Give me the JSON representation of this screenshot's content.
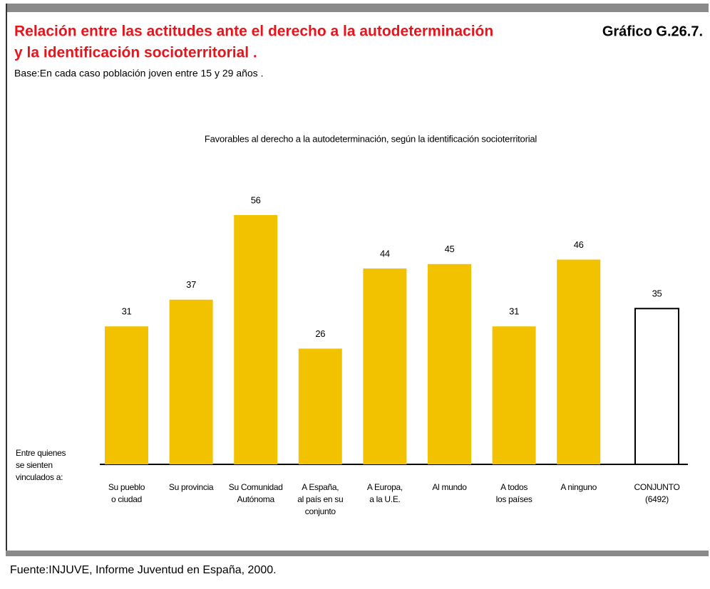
{
  "header": {
    "title_lines": [
      "Relación entre las actitudes ante el derecho a la autodeterminación",
      "y la identificación socioterritorial ."
    ],
    "code": "Gráfico G.26.7.",
    "base": "Base:En cada caso población joven entre 15 y 29 años ."
  },
  "chart_data": {
    "type": "bar",
    "title": "Favorables al derecho a la autodeterminación, según la identificación socioterritorial",
    "axis_label": "Entre quienes\nse sienten\nvinculados a:",
    "categories": [
      "Su pueblo\no ciudad",
      "Su provincia",
      "Su Comunidad\nAutónoma",
      "A España,\nal país en su\nconjunto",
      "A Europa,\na la U.E.",
      "Al mundo",
      "A todos\nlos países",
      "A ninguno",
      "CONJUNTO\n(6492)"
    ],
    "values": [
      31,
      37,
      56,
      26,
      44,
      45,
      31,
      46,
      35
    ],
    "colors": [
      "#f2c200",
      "#f2c200",
      "#f2c200",
      "#f2c200",
      "#f2c200",
      "#f2c200",
      "#f2c200",
      "#f2c200",
      "#ffffff"
    ]
  },
  "footer": {
    "source": "Fuente:INJUVE, Informe Juventud en España, 2000."
  }
}
